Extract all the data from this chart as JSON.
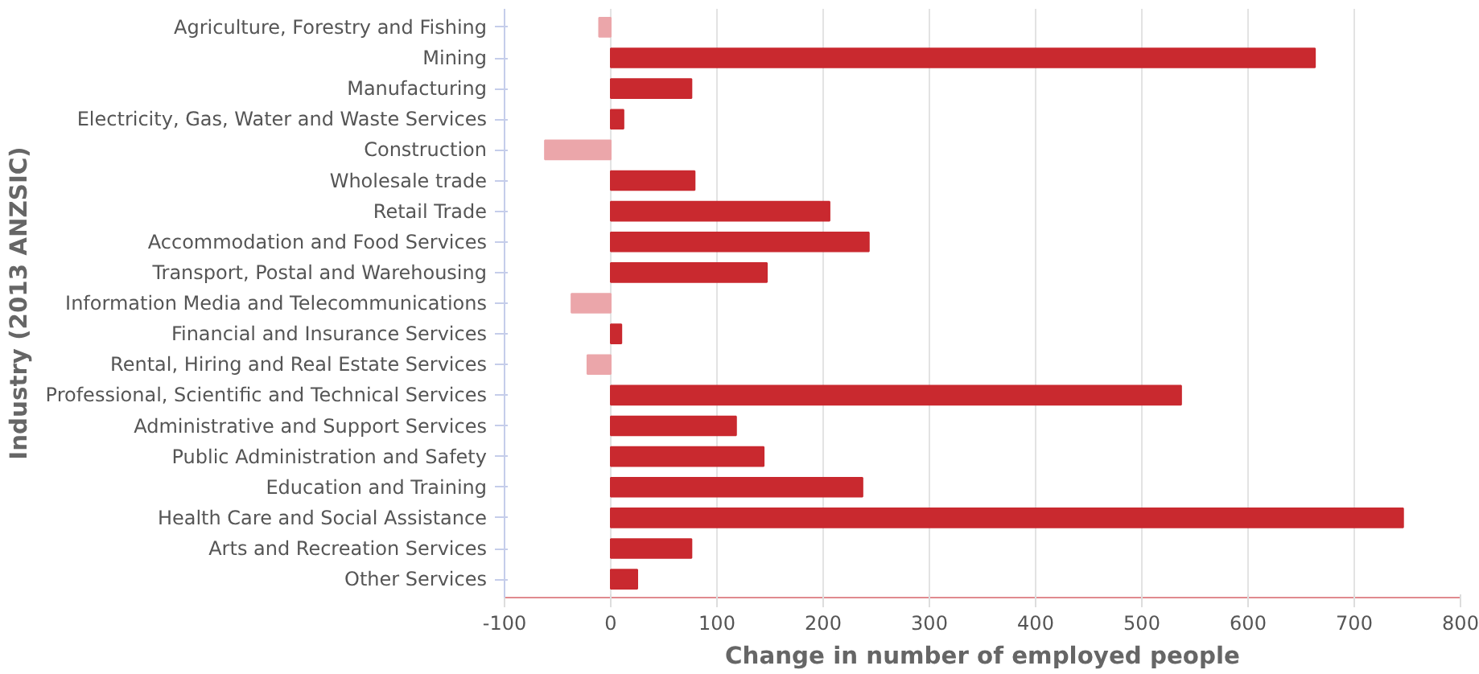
{
  "chart_data": {
    "type": "bar",
    "orientation": "horizontal",
    "xlabel": "Change in number of employed people",
    "ylabel": "Industry (2013 ANZSIC)",
    "categories": [
      "Agriculture, Forestry and Fishing",
      "Mining",
      "Manufacturing",
      "Electricity, Gas, Water and Waste Services",
      "Construction",
      "Wholesale trade",
      "Retail Trade",
      "Accommodation and Food Services",
      "Transport, Postal and Warehousing",
      "Information Media and Telecommunications",
      "Financial and Insurance Services",
      "Rental, Hiring and Real Estate Services",
      "Professional, Scientific and Technical Services",
      "Administrative and Support Services",
      "Public Administration and Safety",
      "Education and Training",
      "Health Care and Social Assistance",
      "Arts and Recreation Services",
      "Other Services"
    ],
    "values": [
      -11,
      663,
      76,
      12,
      -62,
      79,
      206,
      243,
      147,
      -37,
      10,
      -22,
      537,
      118,
      144,
      237,
      746,
      76,
      25
    ],
    "colors": [
      "#eba6aa",
      "#c9292f",
      "#c9292f",
      "#c9292f",
      "#eba6aa",
      "#c9292f",
      "#c9292f",
      "#c9292f",
      "#c9292f",
      "#eba6aa",
      "#c9292f",
      "#eba6aa",
      "#c9292f",
      "#c9292f",
      "#c9292f",
      "#c9292f",
      "#c9292f",
      "#c9292f",
      "#c9292f"
    ],
    "xlim": [
      -100,
      800
    ],
    "xticks": [
      -100,
      0,
      100,
      200,
      300,
      400,
      500,
      600,
      700,
      800
    ],
    "grid": "x"
  }
}
